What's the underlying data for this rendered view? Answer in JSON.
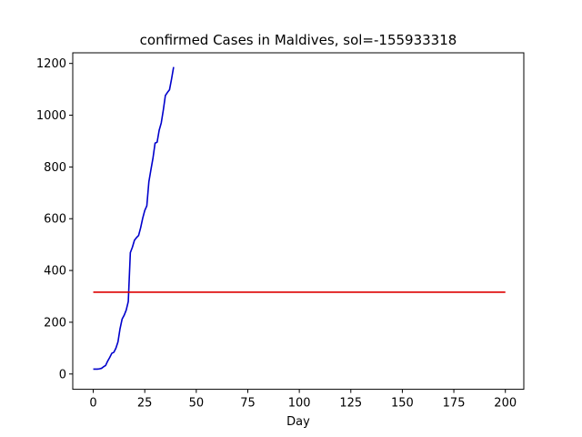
{
  "chart_data": {
    "type": "line",
    "title": "confirmed Cases in Maldives, sol=-155933318",
    "xlabel": "Day",
    "ylabel": "",
    "xlim": [
      -9.95,
      208.95
    ],
    "ylim": [
      -59.1,
      1241.1
    ],
    "xticks": [
      0,
      25,
      50,
      75,
      100,
      125,
      150,
      175,
      200
    ],
    "yticks": [
      0,
      200,
      400,
      600,
      800,
      1000,
      1200
    ],
    "grid": false,
    "series": [
      {
        "color": "#0000cc",
        "x": [
          0,
          1,
          2,
          3,
          4,
          5,
          6,
          7,
          8,
          9,
          10,
          11,
          12,
          13,
          14,
          15,
          16,
          17,
          18,
          19,
          20,
          21,
          22,
          23,
          24,
          25,
          26,
          27,
          28,
          29,
          30,
          31,
          32,
          33,
          34,
          35,
          36,
          37,
          38,
          39
        ],
        "y": [
          19,
          19,
          19,
          20,
          22,
          28,
          33,
          50,
          64,
          80,
          84,
          100,
          124,
          175,
          212,
          227,
          247,
          280,
          469,
          490,
          517,
          527,
          535,
          565,
          602,
          632,
          650,
          743,
          790,
          835,
          892,
          896,
          942,
          970,
          1020,
          1076,
          1088,
          1098,
          1140,
          1186
        ]
      },
      {
        "color": "#dd0000",
        "x": [
          0,
          200
        ],
        "y": [
          316,
          316
        ]
      }
    ]
  }
}
